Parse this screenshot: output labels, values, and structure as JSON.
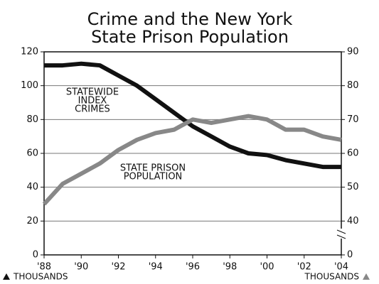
{
  "chart_data": {
    "type": "line",
    "title": [
      "Crime and the New York",
      "State Prison Population"
    ],
    "x": [
      1988,
      1989,
      1990,
      1991,
      1992,
      1993,
      1994,
      1995,
      1996,
      1997,
      1998,
      1999,
      2000,
      2001,
      2002,
      2003,
      2004
    ],
    "series": [
      {
        "name": [
          "STATEWIDE",
          "INDEX",
          "CRIMES"
        ],
        "color": "#111111",
        "values": [
          112,
          112,
          113,
          112,
          106,
          100,
          92,
          84,
          76,
          70,
          64,
          60,
          59,
          56,
          54,
          52,
          52
        ]
      },
      {
        "name": [
          "STATE PRISON",
          "POPULATION"
        ],
        "color": "#888888",
        "axis": "y2",
        "values": [
          45,
          51,
          54,
          57,
          61,
          64,
          66,
          67,
          70,
          69,
          70,
          71,
          70,
          67,
          67,
          65,
          64
        ]
      }
    ],
    "xlim": [
      1988,
      2004
    ],
    "xticks": [
      {
        "value": 1988,
        "label": "'88"
      },
      {
        "value": 1990,
        "label": "'90"
      },
      {
        "value": 1992,
        "label": "'92"
      },
      {
        "value": 1994,
        "label": "'94"
      },
      {
        "value": 1996,
        "label": "'96"
      },
      {
        "value": 1998,
        "label": "'98"
      },
      {
        "value": 2000,
        "label": "'00"
      },
      {
        "value": 2002,
        "label": "'02"
      },
      {
        "value": 2004,
        "label": "'04"
      }
    ],
    "ylim": [
      0,
      120
    ],
    "yticks": [
      0,
      20,
      40,
      60,
      80,
      100,
      120
    ],
    "y2lim": [
      30,
      90
    ],
    "y2ticks": [
      {
        "value": 30,
        "label": "0"
      },
      40,
      50,
      60,
      70,
      80,
      90
    ],
    "y_label": "THOUSANDS",
    "y2_label": "THOUSANDS",
    "grid": true
  }
}
